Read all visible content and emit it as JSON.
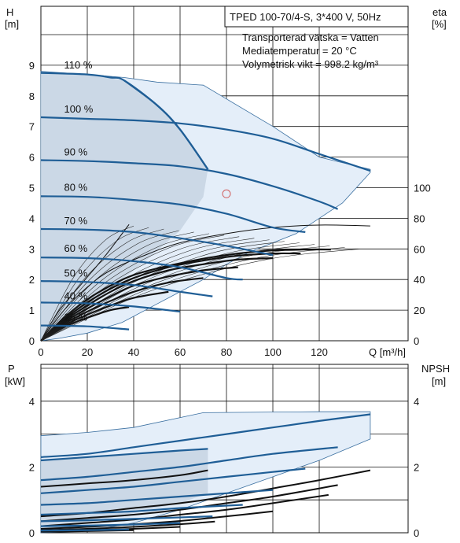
{
  "header": {
    "title": "TPED 100-70/4-S, 3*400 V, 50Hz",
    "info_lines": [
      "Transporterad vätska = Vatten",
      "Mediatemperatur = 20 °C",
      "Volymetrisk vikt = 998.2 kg/m³"
    ]
  },
  "colors": {
    "curve": "#1f5e96",
    "eff_curve": "#111111",
    "envelope_fill": "#e4eef9",
    "shaded_fill": "#c4d2e1",
    "envelope_line": "#3a6fa0",
    "duty_point": "#d06060"
  },
  "chart_data": [
    {
      "type": "line",
      "name": "head",
      "ylabel_left": [
        "H",
        "[m]"
      ],
      "ylabel_right": [
        "eta",
        "[%]"
      ],
      "xlabel": "Q [m³/h]",
      "xlim": [
        0,
        140
      ],
      "ylim": [
        0,
        10
      ],
      "xticks": [
        "0",
        "20",
        "40",
        "60",
        "80",
        "100",
        "120"
      ],
      "yticks_left": [
        "0",
        "1",
        "2",
        "3",
        "4",
        "5",
        "6",
        "7",
        "8",
        "9"
      ],
      "eta_ticks": [
        "0",
        "20",
        "40",
        "60",
        "80",
        "100"
      ],
      "eta_scale": {
        "eta_per_meter": 20
      },
      "speed_labels": [
        "110 %",
        "100 %",
        "90 %",
        "80 %",
        "70 %",
        "60 %",
        "50 %",
        "40 %",
        "25 %"
      ],
      "series": [
        {
          "name": "110 %",
          "x": [
            0,
            20,
            30,
            36,
            50,
            60,
            72
          ],
          "y": [
            8.75,
            8.7,
            8.6,
            8.5,
            7.7,
            6.9,
            5.6
          ]
        },
        {
          "name": "100 %",
          "x": [
            0,
            20,
            40,
            60,
            80,
            100,
            120,
            142
          ],
          "y": [
            7.3,
            7.25,
            7.2,
            7.1,
            6.9,
            6.6,
            6.1,
            5.55
          ]
        },
        {
          "name": "90 %",
          "x": [
            0,
            20,
            40,
            60,
            80,
            100,
            120,
            128
          ],
          "y": [
            5.9,
            5.87,
            5.8,
            5.7,
            5.45,
            5.05,
            4.55,
            4.3
          ]
        },
        {
          "name": "80 %",
          "x": [
            0,
            20,
            40,
            60,
            80,
            100,
            114
          ],
          "y": [
            4.72,
            4.7,
            4.6,
            4.45,
            4.15,
            3.7,
            3.55
          ]
        },
        {
          "name": "70 %",
          "x": [
            0,
            20,
            40,
            60,
            80,
            100
          ],
          "y": [
            3.65,
            3.63,
            3.55,
            3.35,
            3.1,
            2.8
          ]
        },
        {
          "name": "60 %",
          "x": [
            0,
            20,
            40,
            60,
            80,
            87
          ],
          "y": [
            2.72,
            2.7,
            2.6,
            2.4,
            2.05,
            2.0
          ]
        },
        {
          "name": "50 %",
          "x": [
            0,
            20,
            40,
            60,
            74
          ],
          "y": [
            1.95,
            1.92,
            1.82,
            1.6,
            1.45
          ]
        },
        {
          "name": "40 %",
          "x": [
            0,
            20,
            40,
            60
          ],
          "y": [
            1.25,
            1.22,
            1.12,
            0.95
          ]
        },
        {
          "name": "25 %",
          "x": [
            0,
            20,
            38
          ],
          "y": [
            0.5,
            0.47,
            0.37
          ]
        }
      ],
      "envelope": {
        "x": [
          0,
          20,
          36,
          50,
          70,
          80,
          100,
          120,
          142,
          142,
          130,
          110,
          90,
          80,
          70,
          50,
          35,
          20,
          8,
          0
        ],
        "y": [
          8.8,
          8.7,
          8.6,
          8.45,
          8.35,
          7.9,
          7.0,
          6.0,
          5.6,
          5.5,
          4.5,
          3.5,
          2.9,
          2.5,
          2.0,
          1.2,
          0.6,
          0.25,
          0.08,
          0
        ]
      },
      "shaded_region": {
        "x": [
          0,
          20,
          36,
          50,
          60,
          72,
          70,
          60,
          45,
          30,
          18,
          8,
          0
        ],
        "y": [
          8.75,
          8.7,
          8.5,
          7.7,
          6.9,
          5.6,
          4.7,
          3.6,
          2.6,
          1.7,
          1.0,
          0.45,
          0
        ]
      },
      "eta_curves": [
        {
          "x": [
            0,
            10,
            20,
            30,
            40,
            55,
            70,
            85,
            100,
            115,
            125
          ],
          "y": [
            0,
            0.75,
            1.35,
            1.8,
            2.15,
            2.45,
            2.68,
            2.85,
            2.95,
            2.98,
            2.98
          ]
        },
        {
          "x": [
            0,
            10,
            20,
            30,
            40,
            55,
            70,
            85,
            100,
            112
          ],
          "y": [
            0,
            0.7,
            1.25,
            1.7,
            2.05,
            2.4,
            2.62,
            2.78,
            2.85,
            2.85
          ]
        },
        {
          "x": [
            0,
            10,
            20,
            30,
            40,
            55,
            70,
            85,
            100
          ],
          "y": [
            0,
            0.65,
            1.15,
            1.6,
            1.95,
            2.3,
            2.5,
            2.65,
            2.7
          ]
        },
        {
          "x": [
            0,
            10,
            20,
            30,
            40,
            55,
            70,
            85
          ],
          "y": [
            0,
            0.6,
            1.05,
            1.45,
            1.8,
            2.1,
            2.3,
            2.4
          ]
        },
        {
          "x": [
            0,
            10,
            20,
            30,
            40,
            55,
            70
          ],
          "y": [
            0,
            0.55,
            0.95,
            1.3,
            1.6,
            1.9,
            2.05
          ]
        },
        {
          "x": [
            0,
            10,
            20,
            30,
            40,
            55
          ],
          "y": [
            0,
            0.5,
            0.85,
            1.15,
            1.4,
            1.6
          ]
        },
        {
          "x": [
            0,
            10,
            20,
            30,
            38
          ],
          "y": [
            0,
            0.45,
            0.75,
            1.0,
            1.1
          ]
        },
        {
          "x": [
            0,
            10,
            20,
            30,
            45,
            60,
            80,
            100,
            120,
            142
          ],
          "y": [
            0,
            1.0,
            1.75,
            2.3,
            2.8,
            3.2,
            3.5,
            3.7,
            3.78,
            3.75
          ]
        },
        {
          "x": [
            0,
            8,
            18,
            28,
            38
          ],
          "y": [
            0,
            1.0,
            1.9,
            2.8,
            3.8
          ]
        }
      ],
      "duty_point": {
        "x": 80,
        "y": 4.8
      }
    },
    {
      "type": "line",
      "name": "power",
      "ylabel_left": [
        "P",
        "[kW]"
      ],
      "ylabel_right": [
        "NPSH",
        "[m]"
      ],
      "xlim": [
        0,
        140
      ],
      "ylim": [
        0,
        5
      ],
      "yticks_left": [
        "0",
        "2",
        "4"
      ],
      "yticks_right": [
        "0",
        "2",
        "4"
      ],
      "series": [
        {
          "name": "110 %",
          "x": [
            0,
            20,
            40,
            60,
            72
          ],
          "y": [
            2.2,
            2.3,
            2.4,
            2.5,
            2.55
          ]
        },
        {
          "name": "100 %",
          "x": [
            0,
            20,
            40,
            60,
            80,
            100,
            120,
            142
          ],
          "y": [
            2.3,
            2.4,
            2.6,
            2.8,
            3.0,
            3.2,
            3.4,
            3.6
          ]
        },
        {
          "name": "90 %",
          "x": [
            0,
            20,
            40,
            60,
            80,
            100,
            128
          ],
          "y": [
            1.6,
            1.7,
            1.85,
            2.0,
            2.2,
            2.4,
            2.6
          ]
        },
        {
          "name": "80 %",
          "x": [
            0,
            20,
            40,
            60,
            80,
            100,
            114
          ],
          "y": [
            1.2,
            1.3,
            1.4,
            1.55,
            1.7,
            1.85,
            1.95
          ]
        },
        {
          "name": "70 %",
          "x": [
            0,
            20,
            40,
            60,
            80,
            100
          ],
          "y": [
            0.85,
            0.9,
            1.0,
            1.1,
            1.2,
            1.3
          ]
        },
        {
          "name": "60 %",
          "x": [
            0,
            20,
            40,
            60,
            87
          ],
          "y": [
            0.55,
            0.6,
            0.65,
            0.75,
            0.85
          ]
        },
        {
          "name": "50 %",
          "x": [
            0,
            20,
            40,
            74
          ],
          "y": [
            0.35,
            0.38,
            0.42,
            0.5
          ]
        },
        {
          "name": "40 %",
          "x": [
            0,
            20,
            40,
            60
          ],
          "y": [
            0.2,
            0.22,
            0.25,
            0.3
          ]
        },
        {
          "name": "25 %",
          "x": [
            0,
            20,
            38
          ],
          "y": [
            0.07,
            0.08,
            0.1
          ]
        }
      ],
      "npsh_curves": [
        {
          "x": [
            0,
            20,
            40,
            60,
            72
          ],
          "y": [
            1.4,
            1.5,
            1.6,
            1.75,
            1.9
          ]
        },
        {
          "x": [
            0,
            20,
            40,
            60,
            80,
            100,
            120,
            142
          ],
          "y": [
            0.5,
            0.6,
            0.75,
            0.9,
            1.1,
            1.35,
            1.6,
            1.9
          ]
        },
        {
          "x": [
            0,
            20,
            40,
            60,
            80,
            100,
            128
          ],
          "y": [
            0.35,
            0.45,
            0.55,
            0.7,
            0.9,
            1.1,
            1.45
          ]
        },
        {
          "x": [
            0,
            20,
            40,
            60,
            80,
            100,
            124
          ],
          "y": [
            0.2,
            0.3,
            0.4,
            0.55,
            0.7,
            0.9,
            1.15
          ]
        },
        {
          "x": [
            0,
            20,
            40,
            60,
            80,
            100
          ],
          "y": [
            0.12,
            0.18,
            0.26,
            0.36,
            0.5,
            0.65
          ]
        },
        {
          "x": [
            0,
            20,
            40,
            60,
            75
          ],
          "y": [
            0.08,
            0.12,
            0.18,
            0.26,
            0.34
          ]
        },
        {
          "x": [
            0,
            20,
            40,
            60
          ],
          "y": [
            0.05,
            0.08,
            0.12,
            0.18
          ]
        },
        {
          "x": [
            0,
            20,
            40
          ],
          "y": [
            0.03,
            0.05,
            0.08
          ]
        }
      ],
      "envelope": {
        "x": [
          0,
          20,
          40,
          70,
          100,
          120,
          142,
          142,
          120,
          100,
          80,
          60,
          40,
          20,
          0
        ],
        "y": [
          2.95,
          3.05,
          3.2,
          3.65,
          3.67,
          3.68,
          3.68,
          2.85,
          2.2,
          1.7,
          1.2,
          0.7,
          0.3,
          0.05,
          0
        ]
      },
      "shaded_region": {
        "x": [
          0,
          20,
          40,
          60,
          72,
          72,
          60,
          40,
          20,
          0
        ],
        "y": [
          2.2,
          2.3,
          2.4,
          2.5,
          2.55,
          1.2,
          0.9,
          0.6,
          0.3,
          0
        ]
      }
    }
  ]
}
